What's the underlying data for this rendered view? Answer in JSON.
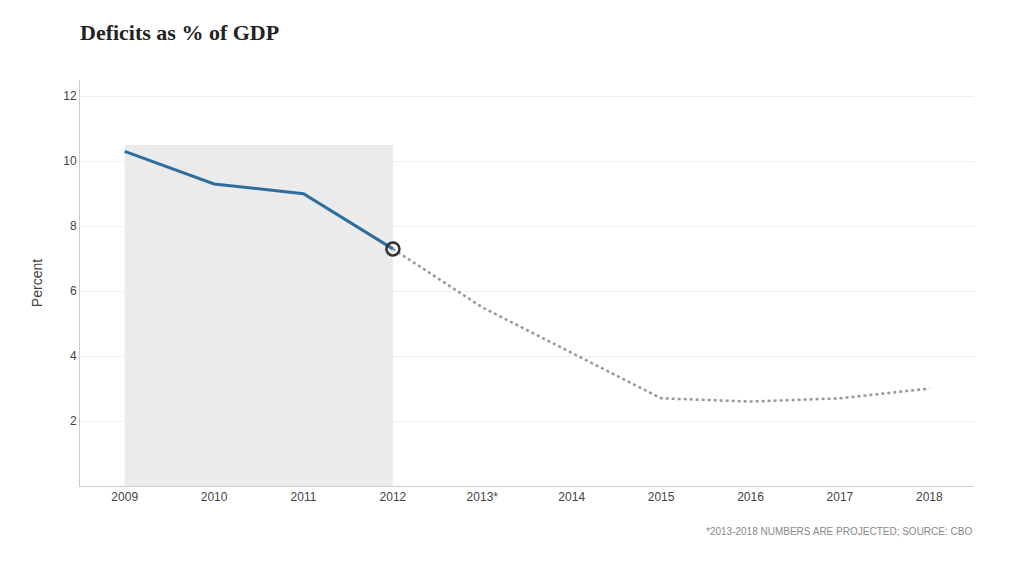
{
  "chart_data": {
    "type": "line",
    "title": "Deficits as % of GDP",
    "ylabel": "Percent",
    "annotations": [
      "*2013-2018 NUMBERS ARE PROJECTED; SOURCE: CBO"
    ],
    "series": [
      {
        "x": [
          2009,
          2010,
          2011,
          2012
        ],
        "values": [
          10.3,
          9.3,
          9.0,
          7.3
        ],
        "color": "#2e6e9e",
        "line_style": "solid"
      },
      {
        "x": [
          2012,
          2013,
          2014,
          2015,
          2016,
          2017,
          2018
        ],
        "values": [
          7.3,
          5.5,
          4.1,
          2.7,
          2.6,
          2.7,
          3.0
        ],
        "color": "#999999",
        "line_style": "dotted"
      },
      {
        "x": [
          2012
        ],
        "values": [
          7.3
        ],
        "color": "#333333",
        "type": "scatter",
        "marker": "circle-open"
      }
    ],
    "span": {
      "xlim": [
        2009,
        2012
      ],
      "ylim": [
        0,
        10.5
      ],
      "color": "#ebebeb"
    },
    "xlim": [
      2008.5,
      2018.5
    ],
    "xticks": [
      2009,
      2010,
      2011,
      2012,
      {
        "value": 2013,
        "label": "2013*"
      },
      2014,
      2015,
      2016,
      2017,
      2018
    ],
    "ylim": [
      0,
      12.5
    ],
    "yticks": [
      2,
      4,
      6,
      8,
      10,
      12
    ],
    "grid": true
  }
}
